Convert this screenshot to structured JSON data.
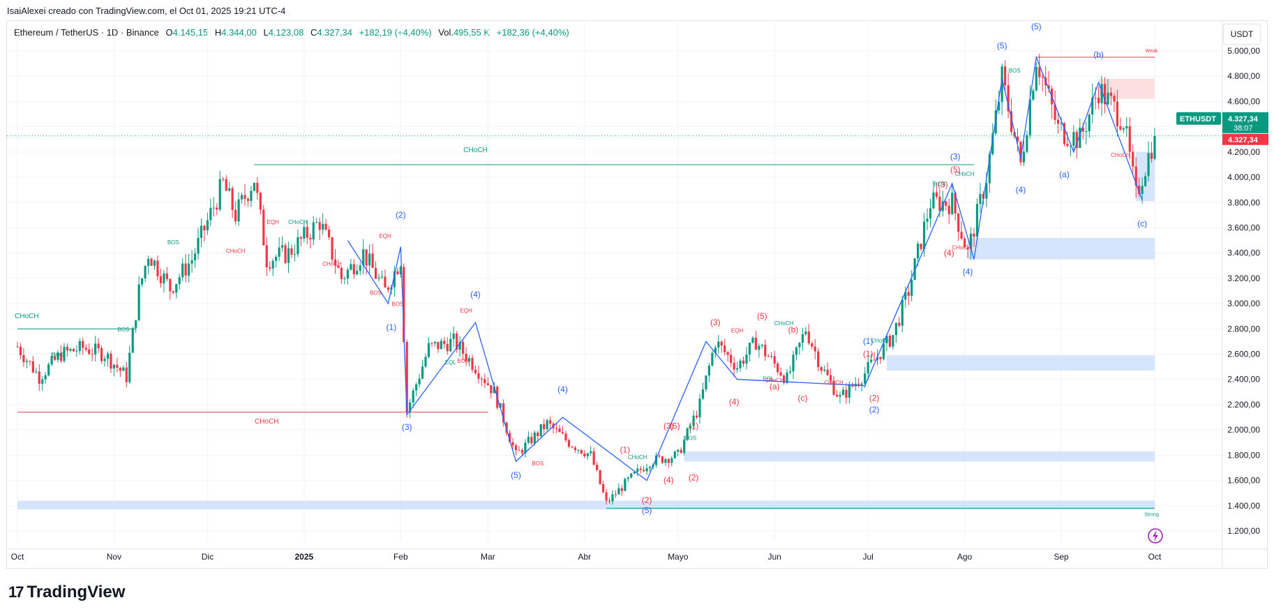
{
  "caption": "IsaiAlexei creado con TradingView.com, el Oct 01, 2025 19:21 UTC-4",
  "legend": {
    "symbol": "Ethereum / TetherUS · 1D · Binance",
    "open_label": "O",
    "open": "4.145,15",
    "high_label": "H",
    "high": "4.344,00",
    "low_label": "L",
    "low": "4.123,08",
    "close_label": "C",
    "close": "4.327,34",
    "change": "+182,19 (+4,40%)",
    "vol_label": "Vol.",
    "vol": "495,55 K",
    "vol_change": "+182,36 (+4,40%)"
  },
  "currency": "USDT",
  "footer": {
    "logo_mark": "17",
    "logo_text": "TradingView"
  },
  "colors": {
    "up": "#089981",
    "down": "#f23645",
    "wave": "#2962ff",
    "zone": "#cfdffb",
    "supply": "#fcd9dc"
  },
  "chart_data": {
    "type": "candlestick",
    "title": "",
    "xlabel": "",
    "ylabel": "",
    "ylim": [
      1050,
      5150
    ],
    "y_ticks": [
      "5.000,00",
      "4.800,00",
      "4.600,00",
      "4.400,00",
      "4.200,00",
      "4.000,00",
      "3.800,00",
      "3.600,00",
      "3.400,00",
      "3.200,00",
      "3.000,00",
      "2.800,00",
      "2.600,00",
      "2.400,00",
      "2.200,00",
      "2.000,00",
      "1.800,00",
      "1.600,00",
      "1.400,00",
      "1.200,00"
    ],
    "y_tick_values": [
      5000,
      4800,
      4600,
      4400,
      4200,
      4000,
      3800,
      3600,
      3400,
      3200,
      3000,
      2800,
      2600,
      2400,
      2200,
      2000,
      1800,
      1600,
      1400,
      1200
    ],
    "x_ticks": [
      "Oct",
      "Nov",
      "Dic",
      "2025",
      "Feb",
      "Mar",
      "Abr",
      "Mayo",
      "Jun",
      "Jul",
      "Ago",
      "Sep",
      "Oct"
    ],
    "x_tick_dates": [
      "2024-10-01",
      "2024-11-01",
      "2024-12-01",
      "2025-01-01",
      "2025-02-01",
      "2025-03-01",
      "2025-04-01",
      "2025-05-01",
      "2025-06-01",
      "2025-07-01",
      "2025-08-01",
      "2025-09-01",
      "2025-10-01"
    ],
    "date_range": [
      "2024-10-01",
      "2025-10-01"
    ],
    "last_price": {
      "label": "ETHUSDT",
      "value": "4.327,34",
      "countdown": "38:07",
      "price": 4327.34
    },
    "price_path": [
      [
        "2024-10-01",
        2660
      ],
      [
        "2024-10-08",
        2420
      ],
      [
        "2024-10-15",
        2600
      ],
      [
        "2024-10-22",
        2650
      ],
      [
        "2024-10-29",
        2600
      ],
      [
        "2024-11-05",
        2420
      ],
      [
        "2024-11-09",
        3100
      ],
      [
        "2024-11-12",
        3400
      ],
      [
        "2024-11-19",
        3120
      ],
      [
        "2024-11-26",
        3350
      ],
      [
        "2024-12-06",
        3950
      ],
      [
        "2024-12-10",
        3700
      ],
      [
        "2024-12-16",
        3990
      ],
      [
        "2024-12-20",
        3350
      ],
      [
        "2024-12-27",
        3400
      ],
      [
        "2025-01-06",
        3650
      ],
      [
        "2025-01-13",
        3200
      ],
      [
        "2025-01-20",
        3400
      ],
      [
        "2025-01-27",
        3100
      ],
      [
        "2025-02-01",
        3350
      ],
      [
        "2025-02-03",
        2150
      ],
      [
        "2025-02-10",
        2650
      ],
      [
        "2025-02-18",
        2700
      ],
      [
        "2025-02-25",
        2500
      ],
      [
        "2025-03-03",
        2300
      ],
      [
        "2025-03-10",
        1800
      ],
      [
        "2025-03-20",
        2050
      ],
      [
        "2025-03-27",
        1900
      ],
      [
        "2025-04-03",
        1800
      ],
      [
        "2025-04-08",
        1420
      ],
      [
        "2025-04-15",
        1600
      ],
      [
        "2025-04-22",
        1750
      ],
      [
        "2025-05-01",
        1800
      ],
      [
        "2025-05-08",
        2200
      ],
      [
        "2025-05-13",
        2700
      ],
      [
        "2025-05-20",
        2500
      ],
      [
        "2025-05-26",
        2700
      ],
      [
        "2025-06-05",
        2400
      ],
      [
        "2025-06-11",
        2800
      ],
      [
        "2025-06-16",
        2500
      ],
      [
        "2025-06-22",
        2250
      ],
      [
        "2025-06-30",
        2450
      ],
      [
        "2025-07-09",
        2750
      ],
      [
        "2025-07-14",
        3100
      ],
      [
        "2025-07-21",
        3800
      ],
      [
        "2025-07-28",
        3800
      ],
      [
        "2025-08-02",
        3400
      ],
      [
        "2025-08-08",
        4000
      ],
      [
        "2025-08-13",
        4780
      ],
      [
        "2025-08-19",
        4100
      ],
      [
        "2025-08-24",
        4950
      ],
      [
        "2025-08-31",
        4380
      ],
      [
        "2025-09-07",
        4300
      ],
      [
        "2025-09-13",
        4700
      ],
      [
        "2025-09-21",
        4450
      ],
      [
        "2025-09-25",
        3850
      ],
      [
        "2025-10-01",
        4327
      ]
    ],
    "zones": [
      {
        "type": "demand",
        "from": "2024-10-01",
        "to": "2025-10-01",
        "y1": 1370,
        "y2": 1440
      },
      {
        "type": "demand",
        "from": "2025-05-03",
        "to": "2025-10-01",
        "y1": 1750,
        "y2": 1830
      },
      {
        "type": "demand",
        "from": "2025-07-07",
        "to": "2025-10-01",
        "y1": 2470,
        "y2": 2590
      },
      {
        "type": "demand",
        "from": "2025-08-02",
        "to": "2025-10-01",
        "y1": 3350,
        "y2": 3520
      },
      {
        "type": "demand",
        "from": "2025-09-25",
        "to": "2025-10-01",
        "y1": 3810,
        "y2": 4200
      },
      {
        "type": "supply",
        "from": "2025-09-13",
        "to": "2025-10-01",
        "y1": 4620,
        "y2": 4780
      }
    ],
    "levels": [
      {
        "label": "CHoCH",
        "from": "2024-12-16",
        "to": "2025-08-04",
        "y": 4100,
        "color": "#089981"
      },
      {
        "label": "CHoCH",
        "from": "2024-10-01",
        "to": "2025-03-01",
        "y": 2140,
        "color": "#f23645"
      },
      {
        "label": "CHoCH",
        "from": "2024-10-01",
        "to": "2024-11-08",
        "y": 2800,
        "color": "#089981"
      },
      {
        "label": "Weak",
        "from": "2025-08-24",
        "to": "2025-10-01",
        "y": 4950,
        "color": "#f23645"
      },
      {
        "label": "Strong",
        "from": "2025-04-08",
        "to": "2025-10-01",
        "y": 1380,
        "color": "#089981"
      }
    ],
    "wave_path": [
      [
        "2025-01-15",
        3500
      ],
      [
        "2025-01-28",
        3000
      ],
      [
        "2025-02-01",
        3450
      ],
      [
        "2025-02-03",
        2120
      ],
      [
        "2025-02-25",
        2850
      ],
      [
        "2025-03-10",
        1750
      ],
      [
        "2025-03-25",
        2100
      ],
      [
        "2025-04-21",
        1600
      ],
      [
        "2025-05-10",
        2700
      ],
      [
        "2025-05-20",
        2400
      ],
      [
        "2025-06-30",
        2350
      ],
      [
        "2025-07-28",
        3950
      ],
      [
        "2025-08-04",
        3350
      ],
      [
        "2025-08-13",
        4780
      ],
      [
        "2025-08-19",
        4150
      ],
      [
        "2025-08-24",
        4950
      ],
      [
        "2025-09-05",
        4200
      ],
      [
        "2025-09-13",
        4750
      ],
      [
        "2025-09-27",
        3820
      ]
    ],
    "labels": [
      {
        "text": "CHoCH",
        "date": "2025-02-25",
        "y": 4200,
        "color": "#089981",
        "size": 10
      },
      {
        "text": "CHoCH",
        "date": "2024-12-20",
        "y": 2050,
        "color": "#f23645",
        "size": 10
      },
      {
        "text": "CHoCH",
        "date": "2024-10-04",
        "y": 2885,
        "color": "#089981",
        "size": 10
      },
      {
        "text": "(2)",
        "date": "2025-02-01",
        "y": 3680,
        "color": "#2962ff",
        "size": 12
      },
      {
        "text": "(1)",
        "date": "2025-01-29",
        "y": 2790,
        "color": "#2962ff",
        "size": 12
      },
      {
        "text": "(3)",
        "date": "2025-02-03",
        "y": 2000,
        "color": "#2962ff",
        "size": 12
      },
      {
        "text": "(4)",
        "date": "2025-02-25",
        "y": 3050,
        "color": "#2962ff",
        "size": 12
      },
      {
        "text": "(4)",
        "date": "2025-03-25",
        "y": 2300,
        "color": "#2962ff",
        "size": 12
      },
      {
        "text": "(5)",
        "date": "2025-03-10",
        "y": 1620,
        "color": "#2962ff",
        "size": 12
      },
      {
        "text": "(5)",
        "date": "2025-04-21",
        "y": 1340,
        "color": "#2962ff",
        "size": 12
      },
      {
        "text": "(2)",
        "date": "2025-04-21",
        "y": 1420,
        "color": "#f23645",
        "size": 12
      },
      {
        "text": "(1)",
        "date": "2025-04-14",
        "y": 1820,
        "color": "#f23645",
        "size": 12
      },
      {
        "text": "(4)",
        "date": "2025-04-28",
        "y": 1580,
        "color": "#f23645",
        "size": 12
      },
      {
        "text": "(3)",
        "date": "2025-04-28",
        "y": 2010,
        "color": "#f23645",
        "size": 12
      },
      {
        "text": "(5)",
        "date": "2025-04-30",
        "y": 2010,
        "color": "#f23645",
        "size": 12
      },
      {
        "text": "(1)",
        "date": "2025-05-06",
        "y": 2010,
        "color": "#f23645",
        "size": 12
      },
      {
        "text": "(2)",
        "date": "2025-05-06",
        "y": 1600,
        "color": "#f23645",
        "size": 12
      },
      {
        "text": "(3)",
        "date": "2025-05-13",
        "y": 2830,
        "color": "#f23645",
        "size": 12
      },
      {
        "text": "(4)",
        "date": "2025-05-19",
        "y": 2200,
        "color": "#f23645",
        "size": 12
      },
      {
        "text": "(5)",
        "date": "2025-05-28",
        "y": 2880,
        "color": "#f23645",
        "size": 12
      },
      {
        "text": "(b)",
        "date": "2025-06-07",
        "y": 2770,
        "color": "#f23645",
        "size": 12
      },
      {
        "text": "(a)",
        "date": "2025-06-01",
        "y": 2320,
        "color": "#f23645",
        "size": 12
      },
      {
        "text": "(c)",
        "date": "2025-06-10",
        "y": 2230,
        "color": "#f23645",
        "size": 12
      },
      {
        "text": "(1)",
        "date": "2025-07-01",
        "y": 2680,
        "color": "#2962ff",
        "size": 12
      },
      {
        "text": "(1)",
        "date": "2025-07-01",
        "y": 2580,
        "color": "#f23645",
        "size": 12
      },
      {
        "text": "(2)",
        "date": "2025-07-03",
        "y": 2230,
        "color": "#f23645",
        "size": 12
      },
      {
        "text": "(2)",
        "date": "2025-07-03",
        "y": 2140,
        "color": "#2962ff",
        "size": 12
      },
      {
        "text": "(3)",
        "date": "2025-07-25",
        "y": 3920,
        "color": "#f23645",
        "size": 12
      },
      {
        "text": "(4)",
        "date": "2025-07-27",
        "y": 3380,
        "color": "#f23645",
        "size": 12
      },
      {
        "text": "(5)",
        "date": "2025-07-29",
        "y": 4040,
        "color": "#f23645",
        "size": 12
      },
      {
        "text": "(3)",
        "date": "2025-07-29",
        "y": 4140,
        "color": "#2962ff",
        "size": 12
      },
      {
        "text": "(4)",
        "date": "2025-08-02",
        "y": 3230,
        "color": "#2962ff",
        "size": 12
      },
      {
        "text": "(4)",
        "date": "2025-08-19",
        "y": 3880,
        "color": "#2962ff",
        "size": 12
      },
      {
        "text": "(5)",
        "date": "2025-08-13",
        "y": 5020,
        "color": "#2962ff",
        "size": 12
      },
      {
        "text": "(5)",
        "date": "2025-08-24",
        "y": 5170,
        "color": "#2962ff",
        "size": 12
      },
      {
        "text": "(b)",
        "date": "2025-09-13",
        "y": 4950,
        "color": "#2962ff",
        "size": 12
      },
      {
        "text": "(a)",
        "date": "2025-09-02",
        "y": 4000,
        "color": "#2962ff",
        "size": 12
      },
      {
        "text": "(c)",
        "date": "2025-09-27",
        "y": 3610,
        "color": "#2962ff",
        "size": 12
      },
      {
        "text": "BOS",
        "date": "2024-10-14",
        "y": 2580,
        "color": "#089981",
        "size": 8
      },
      {
        "text": "BOS",
        "date": "2024-11-04",
        "y": 2780,
        "color": "#089981",
        "size": 8
      },
      {
        "text": "BOS",
        "date": "2024-11-20",
        "y": 3470,
        "color": "#089981",
        "size": 8
      },
      {
        "text": "EQH",
        "date": "2024-12-22",
        "y": 3630,
        "color": "#f23645",
        "size": 8
      },
      {
        "text": "CHoCH",
        "date": "2024-12-10",
        "y": 3400,
        "color": "#f23645",
        "size": 8
      },
      {
        "text": "CHoCH",
        "date": "2025-01-10",
        "y": 3300,
        "color": "#f23645",
        "size": 8
      },
      {
        "text": "CHoCH",
        "date": "2024-12-30",
        "y": 3630,
        "color": "#089981",
        "size": 8
      },
      {
        "text": "EQH",
        "date": "2025-01-27",
        "y": 3520,
        "color": "#f23645",
        "size": 8
      },
      {
        "text": "BOS",
        "date": "2025-01-24",
        "y": 3070,
        "color": "#f23645",
        "size": 8
      },
      {
        "text": "BOS",
        "date": "2025-01-31",
        "y": 2980,
        "color": "#f23645",
        "size": 8
      },
      {
        "text": "EQH",
        "date": "2025-02-22",
        "y": 2930,
        "color": "#f23645",
        "size": 8
      },
      {
        "text": "EQL",
        "date": "2025-02-17",
        "y": 2520,
        "color": "#089981",
        "size": 8
      },
      {
        "text": "BOS",
        "date": "2025-02-21",
        "y": 2530,
        "color": "#f23645",
        "size": 8
      },
      {
        "text": "BOS",
        "date": "2025-03-17",
        "y": 1720,
        "color": "#f23645",
        "size": 8
      },
      {
        "text": "CHoCH",
        "date": "2025-04-18",
        "y": 1770,
        "color": "#089981",
        "size": 8
      },
      {
        "text": "BOS",
        "date": "2025-05-05",
        "y": 1920,
        "color": "#089981",
        "size": 8
      },
      {
        "text": "EQH",
        "date": "2025-05-20",
        "y": 2770,
        "color": "#f23645",
        "size": 8
      },
      {
        "text": "CHoCH",
        "date": "2025-06-04",
        "y": 2830,
        "color": "#089981",
        "size": 8
      },
      {
        "text": "EQL",
        "date": "2025-05-30",
        "y": 2390,
        "color": "#089981",
        "size": 8
      },
      {
        "text": "CHoCH",
        "date": "2025-06-01",
        "y": 2380,
        "color": "#f23645",
        "size": 8
      },
      {
        "text": "CHoCH",
        "date": "2025-06-20",
        "y": 2360,
        "color": "#f23645",
        "size": 8
      },
      {
        "text": "CHoCH",
        "date": "2025-07-05",
        "y": 2690,
        "color": "#089981",
        "size": 8
      },
      {
        "text": "BOS",
        "date": "2025-07-24",
        "y": 3930,
        "color": "#089981",
        "size": 8
      },
      {
        "text": "CHoCH",
        "date": "2025-08-01",
        "y": 4010,
        "color": "#089981",
        "size": 8
      },
      {
        "text": "CHoCH",
        "date": "2025-07-31",
        "y": 3430,
        "color": "#f23645",
        "size": 8
      },
      {
        "text": "BOS",
        "date": "2025-08-17",
        "y": 4830,
        "color": "#089981",
        "size": 8
      },
      {
        "text": "CHoCH",
        "date": "2025-09-20",
        "y": 4160,
        "color": "#f23645",
        "size": 8
      },
      {
        "text": "Weak",
        "date": "2025-09-30",
        "y": 4990,
        "color": "#f23645",
        "size": 7
      },
      {
        "text": "Strong",
        "date": "2025-09-30",
        "y": 1320,
        "color": "#089981",
        "size": 7
      }
    ]
  }
}
